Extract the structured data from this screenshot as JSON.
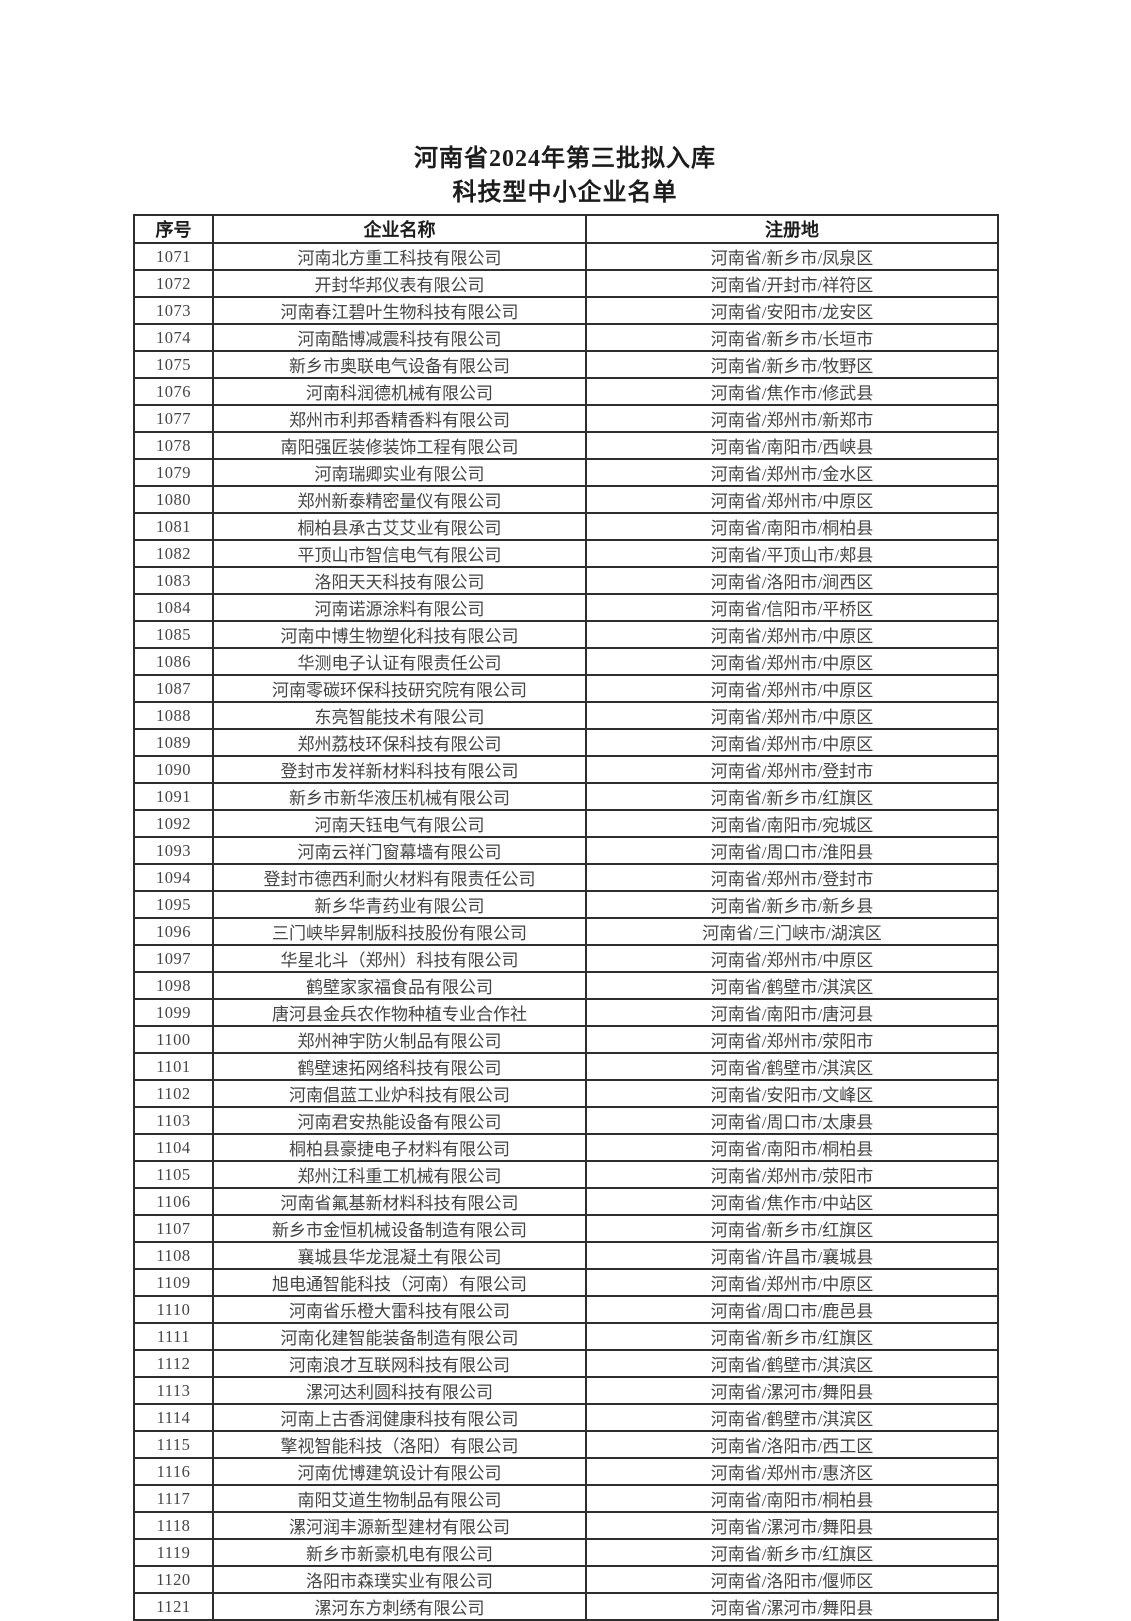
{
  "page": {
    "title_line1": "河南省2024年第三批拟入库",
    "title_line2": "科技型中小企业名单"
  },
  "table": {
    "headers": [
      "序号",
      "企业名称",
      "注册地"
    ],
    "rows": [
      [
        "1071",
        "河南北方重工科技有限公司",
        "河南省/新乡市/凤泉区"
      ],
      [
        "1072",
        "开封华邦仪表有限公司",
        "河南省/开封市/祥符区"
      ],
      [
        "1073",
        "河南春江碧叶生物科技有限公司",
        "河南省/安阳市/龙安区"
      ],
      [
        "1074",
        "河南酷博减震科技有限公司",
        "河南省/新乡市/长垣市"
      ],
      [
        "1075",
        "新乡市奥联电气设备有限公司",
        "河南省/新乡市/牧野区"
      ],
      [
        "1076",
        "河南科润德机械有限公司",
        "河南省/焦作市/修武县"
      ],
      [
        "1077",
        "郑州市利邦香精香料有限公司",
        "河南省/郑州市/新郑市"
      ],
      [
        "1078",
        "南阳强匠装修装饰工程有限公司",
        "河南省/南阳市/西峡县"
      ],
      [
        "1079",
        "河南瑞卿实业有限公司",
        "河南省/郑州市/金水区"
      ],
      [
        "1080",
        "郑州新泰精密量仪有限公司",
        "河南省/郑州市/中原区"
      ],
      [
        "1081",
        "桐柏县承古艾艾业有限公司",
        "河南省/南阳市/桐柏县"
      ],
      [
        "1082",
        "平顶山市智信电气有限公司",
        "河南省/平顶山市/郏县"
      ],
      [
        "1083",
        "洛阳天天科技有限公司",
        "河南省/洛阳市/涧西区"
      ],
      [
        "1084",
        "河南诺源涂料有限公司",
        "河南省/信阳市/平桥区"
      ],
      [
        "1085",
        "河南中博生物塑化科技有限公司",
        "河南省/郑州市/中原区"
      ],
      [
        "1086",
        "华测电子认证有限责任公司",
        "河南省/郑州市/中原区"
      ],
      [
        "1087",
        "河南零碳环保科技研究院有限公司",
        "河南省/郑州市/中原区"
      ],
      [
        "1088",
        "东亮智能技术有限公司",
        "河南省/郑州市/中原区"
      ],
      [
        "1089",
        "郑州荔枝环保科技有限公司",
        "河南省/郑州市/中原区"
      ],
      [
        "1090",
        "登封市发祥新材料科技有限公司",
        "河南省/郑州市/登封市"
      ],
      [
        "1091",
        "新乡市新华液压机械有限公司",
        "河南省/新乡市/红旗区"
      ],
      [
        "1092",
        "河南天钰电气有限公司",
        "河南省/南阳市/宛城区"
      ],
      [
        "1093",
        "河南云祥门窗幕墙有限公司",
        "河南省/周口市/淮阳县"
      ],
      [
        "1094",
        "登封市德西利耐火材料有限责任公司",
        "河南省/郑州市/登封市"
      ],
      [
        "1095",
        "新乡华青药业有限公司",
        "河南省/新乡市/新乡县"
      ],
      [
        "1096",
        "三门峡毕昇制版科技股份有限公司",
        "河南省/三门峡市/湖滨区"
      ],
      [
        "1097",
        "华星北斗（郑州）科技有限公司",
        "河南省/郑州市/中原区"
      ],
      [
        "1098",
        "鹤壁家家福食品有限公司",
        "河南省/鹤壁市/淇滨区"
      ],
      [
        "1099",
        "唐河县金兵农作物种植专业合作社",
        "河南省/南阳市/唐河县"
      ],
      [
        "1100",
        "郑州神宇防火制品有限公司",
        "河南省/郑州市/荥阳市"
      ],
      [
        "1101",
        "鹤壁速拓网络科技有限公司",
        "河南省/鹤壁市/淇滨区"
      ],
      [
        "1102",
        "河南倡蓝工业炉科技有限公司",
        "河南省/安阳市/文峰区"
      ],
      [
        "1103",
        "河南君安热能设备有限公司",
        "河南省/周口市/太康县"
      ],
      [
        "1104",
        "桐柏县豪捷电子材料有限公司",
        "河南省/南阳市/桐柏县"
      ],
      [
        "1105",
        "郑州江科重工机械有限公司",
        "河南省/郑州市/荥阳市"
      ],
      [
        "1106",
        "河南省氟基新材料科技有限公司",
        "河南省/焦作市/中站区"
      ],
      [
        "1107",
        "新乡市金恒机械设备制造有限公司",
        "河南省/新乡市/红旗区"
      ],
      [
        "1108",
        "襄城县华龙混凝土有限公司",
        "河南省/许昌市/襄城县"
      ],
      [
        "1109",
        "旭电通智能科技（河南）有限公司",
        "河南省/郑州市/中原区"
      ],
      [
        "1110",
        "河南省乐橙大雷科技有限公司",
        "河南省/周口市/鹿邑县"
      ],
      [
        "1111",
        "河南化建智能装备制造有限公司",
        "河南省/新乡市/红旗区"
      ],
      [
        "1112",
        "河南浪才互联网科技有限公司",
        "河南省/鹤壁市/淇滨区"
      ],
      [
        "1113",
        "漯河达利圆科技有限公司",
        "河南省/漯河市/舞阳县"
      ],
      [
        "1114",
        "河南上古香润健康科技有限公司",
        "河南省/鹤壁市/淇滨区"
      ],
      [
        "1115",
        "擎视智能科技（洛阳）有限公司",
        "河南省/洛阳市/西工区"
      ],
      [
        "1116",
        "河南优博建筑设计有限公司",
        "河南省/郑州市/惠济区"
      ],
      [
        "1117",
        "南阳艾道生物制品有限公司",
        "河南省/南阳市/桐柏县"
      ],
      [
        "1118",
        "漯河润丰源新型建材有限公司",
        "河南省/漯河市/舞阳县"
      ],
      [
        "1119",
        "新乡市新豪机电有限公司",
        "河南省/新乡市/红旗区"
      ],
      [
        "1120",
        "洛阳市森璞实业有限公司",
        "河南省/洛阳市/偃师区"
      ],
      [
        "1121",
        "漯河东方刺绣有限公司",
        "河南省/漯河市/舞阳县"
      ]
    ]
  }
}
